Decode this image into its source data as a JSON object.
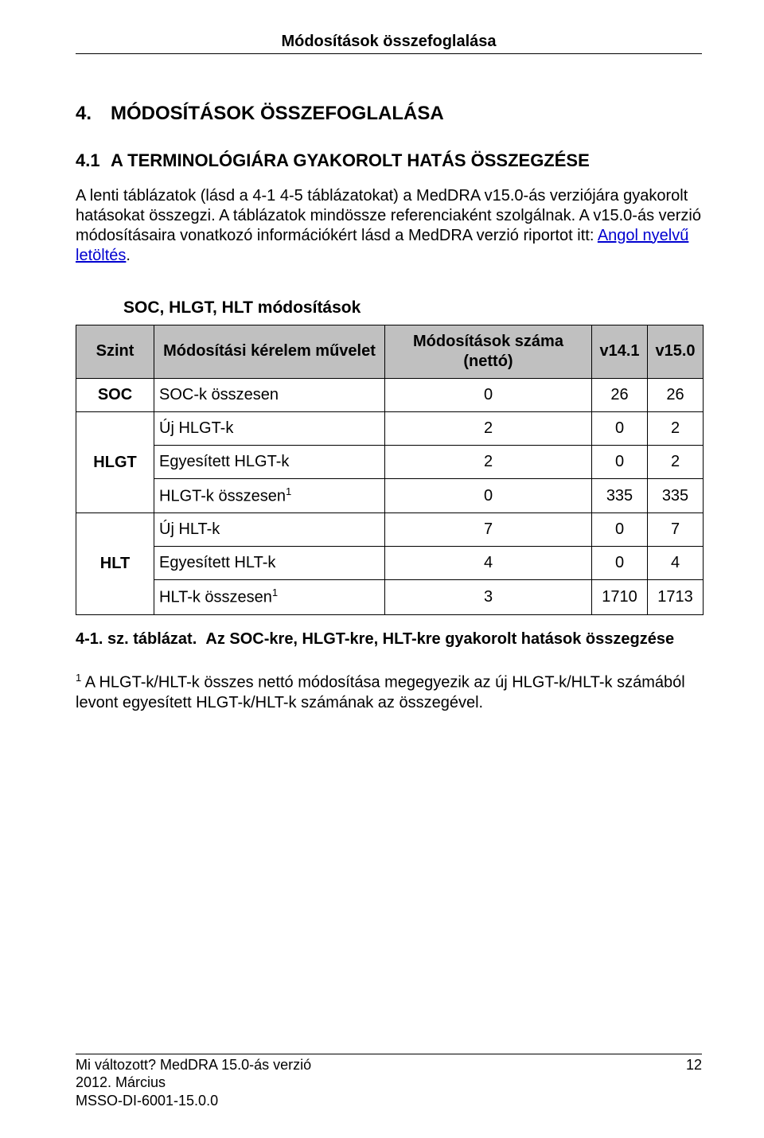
{
  "header": {
    "title": "Módosítások összefoglalása"
  },
  "h1": {
    "num": "4.",
    "text": "MÓDOSÍTÁSOK ÖSSZEFOGLALÁSA"
  },
  "h2": {
    "num": "4.1",
    "text": "A TERMINOLÓGIÁRA GYAKOROLT HATÁS ÖSSZEGZÉSE"
  },
  "para1_a": "A lenti táblázatok (lásd a 4-1 4-5 táblázatokat) a MedDRA v15.0-ás verziójára gyakorolt hatásokat összegzi. A táblázatok mindössze referenciaként szolgálnak. A v15.0-ás verzió módosításaira vonatkozó információkért lásd a MedDRA verzió riportot itt: ",
  "para1_link": "Angol nyelvű letöltés",
  "para1_b": ".",
  "table": {
    "title": "SOC, HLGT, HLT módosítások",
    "columns": {
      "level": "Szint",
      "op": "Módosítási kérelem művelet",
      "net": "Módosítások száma (nettó)",
      "v1": "v14.1",
      "v2": "v15.0"
    },
    "groups": [
      {
        "level": "SOC",
        "rows": [
          {
            "op": "SOC-k összesen",
            "net": "0",
            "v1": "26",
            "v2": "26"
          }
        ]
      },
      {
        "level": "HLGT",
        "rows": [
          {
            "op": "Új HLGT-k",
            "net": "2",
            "v1": "0",
            "v2": "2"
          },
          {
            "op": "Egyesített HLGT-k",
            "net": "2",
            "v1": "0",
            "v2": "2"
          },
          {
            "op": "HLGT-k összesen",
            "sup": "1",
            "net": "0",
            "v1": "335",
            "v2": "335"
          }
        ]
      },
      {
        "level": "HLT",
        "rows": [
          {
            "op": "Új HLT-k",
            "net": "7",
            "v1": "0",
            "v2": "7"
          },
          {
            "op": "Egyesített HLT-k",
            "net": "4",
            "v1": "0",
            "v2": "4"
          },
          {
            "op": "HLT-k összesen",
            "sup": "1",
            "net": "3",
            "v1": "1710",
            "v2": "1713"
          }
        ]
      }
    ]
  },
  "caption": {
    "label": "4-1. sz. táblázat.",
    "text": "Az SOC-kre, HLGT-kre, HLT-kre gyakorolt hatások összegzése"
  },
  "footnote": {
    "marker": "1",
    "text": " A HLGT-k/HLT-k összes nettó módosítása megegyezik az új HLGT-k/HLT-k számából levont egyesített HLGT-k/HLT-k számának az összegével."
  },
  "footer": {
    "line1": "Mi változott? MedDRA 15.0-ás verzió",
    "line2": "2012. Március",
    "line3": "MSSO-DI-6001-15.0.0",
    "page": "12"
  }
}
